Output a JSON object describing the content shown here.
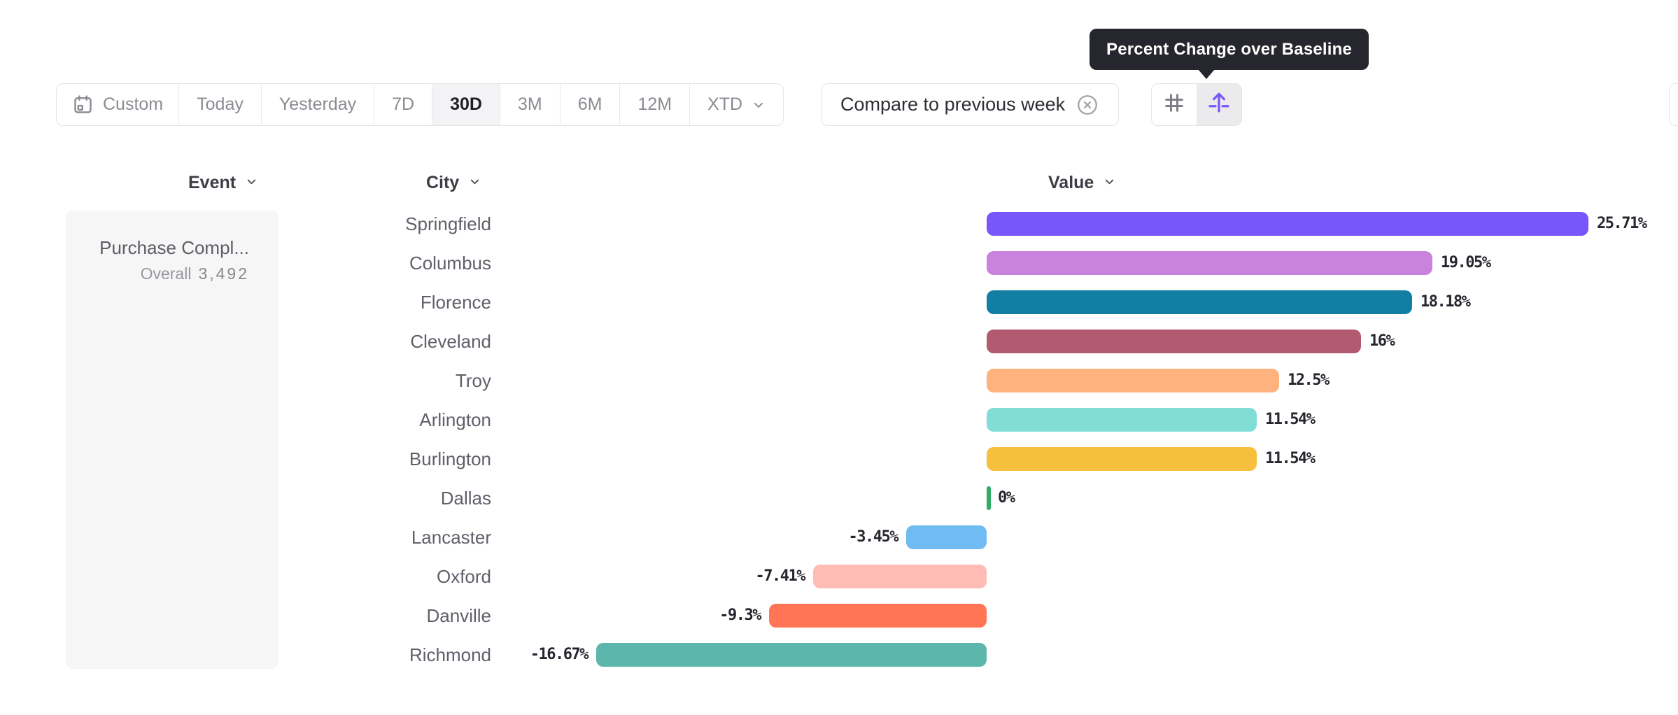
{
  "tooltip": {
    "text": "Percent Change over Baseline"
  },
  "toolbar": {
    "date_ranges": [
      {
        "label": "Custom",
        "icon": "calendar-icon",
        "active": false
      },
      {
        "label": "Today",
        "active": false
      },
      {
        "label": "Yesterday",
        "active": false
      },
      {
        "label": "7D",
        "active": false
      },
      {
        "label": "30D",
        "active": true
      },
      {
        "label": "3M",
        "active": false
      },
      {
        "label": "6M",
        "active": false
      },
      {
        "label": "12M",
        "active": false
      },
      {
        "label": "XTD",
        "chevron": true,
        "active": false
      }
    ],
    "compare_filter": {
      "label": "Compare to previous week"
    },
    "view_toggles": [
      {
        "name": "number-format",
        "icon": "hash-icon",
        "active": false
      },
      {
        "name": "percent-change-over-baseline",
        "icon": "arrow-up-from-baseline-icon",
        "active": true
      }
    ],
    "accent_color": "#7857FA"
  },
  "columns": {
    "event": "Event",
    "city": "City",
    "value": "Value"
  },
  "event_panel": {
    "title": "Purchase Compl...",
    "overall_label": "Overall",
    "overall_value": "3,492"
  },
  "chart_data": {
    "type": "bar",
    "orientation": "horizontal",
    "unit": "%",
    "baseline": 0,
    "categories": [
      "Springfield",
      "Columbus",
      "Florence",
      "Cleveland",
      "Troy",
      "Arlington",
      "Burlington",
      "Dallas",
      "Lancaster",
      "Oxford",
      "Danville",
      "Richmond"
    ],
    "values": [
      25.71,
      19.05,
      18.18,
      16,
      12.5,
      11.54,
      11.54,
      0,
      -3.45,
      -7.41,
      -9.3,
      -16.67
    ],
    "labels": [
      "25.71%",
      "19.05%",
      "18.18%",
      "16%",
      "12.5%",
      "11.54%",
      "11.54%",
      "0%",
      "-3.45%",
      "-7.41%",
      "-9.3%",
      "-16.67%"
    ],
    "colors": [
      "#7857FA",
      "#C983DC",
      "#117FA4",
      "#B25A70",
      "#FFB27D",
      "#80DED6",
      "#F7BF3E",
      "#2EAD64",
      "#6FBBF2",
      "#FFBCB4",
      "#FF7556",
      "#5CB6AC"
    ],
    "zero_color": "#2EAD64",
    "xlim": [
      -20,
      27
    ],
    "grid": false,
    "legend": false
  }
}
